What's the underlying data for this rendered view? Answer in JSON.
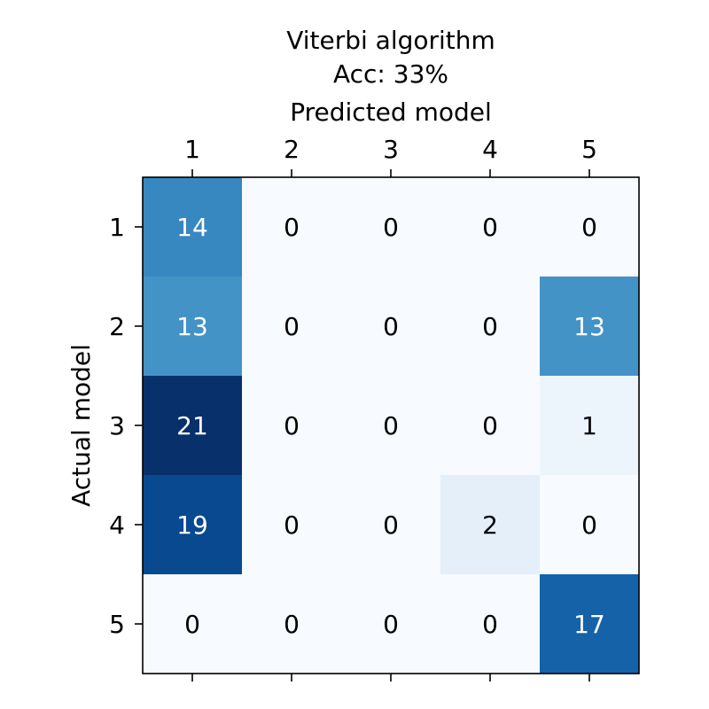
{
  "chart_data": {
    "type": "heatmap",
    "title_lines": [
      "Viterbi algorithm",
      "Acc: 33%"
    ],
    "xlabel": "Predicted model",
    "ylabel": "Actual model",
    "x_categories": [
      "1",
      "2",
      "3",
      "4",
      "5"
    ],
    "y_categories": [
      "1",
      "2",
      "3",
      "4",
      "5"
    ],
    "x_axis_position": "top",
    "colormap": "Blues",
    "value_range": [
      0,
      21
    ],
    "grid": false,
    "values": [
      [
        14,
        0,
        0,
        0,
        0
      ],
      [
        13,
        0,
        0,
        0,
        13
      ],
      [
        21,
        0,
        0,
        0,
        1
      ],
      [
        19,
        0,
        0,
        2,
        0
      ],
      [
        0,
        0,
        0,
        0,
        17
      ]
    ]
  }
}
